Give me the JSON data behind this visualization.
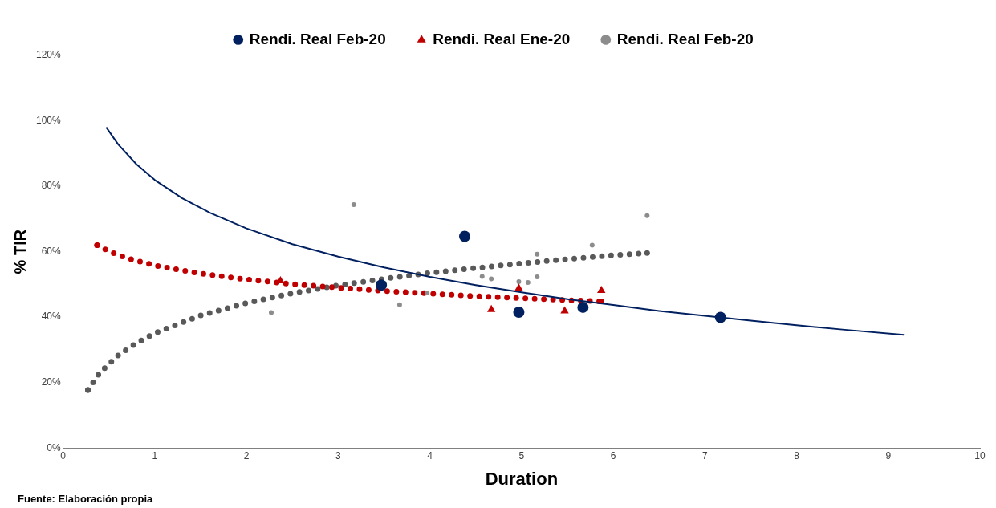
{
  "chart_data": {
    "type": "scatter",
    "xlabel": "Duration",
    "ylabel": "% TIR",
    "xlim": [
      0,
      10
    ],
    "xticks": [
      0,
      1,
      2,
      3,
      4,
      5,
      6,
      7,
      8,
      9,
      10
    ],
    "ylim": [
      0,
      120
    ],
    "yticks": [
      {
        "value": 0,
        "label": "0%"
      },
      {
        "value": 20,
        "label": "20%"
      },
      {
        "value": 40,
        "label": "40%"
      },
      {
        "value": 60,
        "label": "60%"
      },
      {
        "value": 80,
        "label": "80%"
      },
      {
        "value": 100,
        "label": "100%"
      },
      {
        "value": 120,
        "label": "120%"
      }
    ],
    "grid": false,
    "legend": "top",
    "annotations": [
      "Fuente: Elaboración propia"
    ],
    "series": [
      {
        "name": "Rendi. Real Feb-20",
        "marker": "circle",
        "color": "#002060",
        "x": [
          4.38,
          3.47,
          4.97,
          5.67,
          7.17
        ],
        "values": [
          64.7,
          49.8,
          41.5,
          43.0,
          39.9
        ]
      },
      {
        "name": "Rendi. Real Ene-20",
        "marker": "triangle",
        "color": "#c00000",
        "x": [
          2.37,
          4.67,
          4.97,
          5.47,
          5.87
        ],
        "values": [
          51.1,
          42.3,
          48.8,
          41.9,
          48.1
        ]
      },
      {
        "name": "Rendi. Real Feb-20",
        "marker": "circle",
        "color": "#8c8c8c",
        "x": [
          2.27,
          3.17,
          3.67,
          3.97,
          4.57,
          4.67,
          4.97,
          5.07,
          5.17,
          5.17,
          5.77,
          6.37
        ],
        "values": [
          41.4,
          74.4,
          43.8,
          47.4,
          52.4,
          51.7,
          50.8,
          50.6,
          52.3,
          59.2,
          62.0,
          71.0
        ]
      },
      {
        "type": "line",
        "marker": "none",
        "line_style": "solid",
        "color": "#002060",
        "x": [
          0.47,
          0.6,
          0.8,
          1,
          1.3,
          1.6,
          2,
          2.5,
          3,
          3.5,
          4,
          4.5,
          5,
          5.5,
          6,
          6.5,
          7,
          7.5,
          8,
          8.5,
          9.17
        ],
        "values": [
          98.0,
          92.8,
          86.7,
          81.9,
          76.3,
          71.9,
          67.1,
          62.3,
          58.5,
          55.2,
          52.3,
          49.8,
          47.6,
          45.5,
          43.7,
          41.9,
          40.4,
          38.9,
          37.5,
          36.2,
          34.6
        ]
      },
      {
        "type": "line",
        "marker": "none",
        "line_style": "dotted",
        "color": "#c00000",
        "x": [
          0.37,
          0.5,
          0.7,
          1,
          1.5,
          2,
          2.5,
          3,
          3.5,
          4,
          4.5,
          5,
          5.5,
          5.87
        ],
        "values": [
          62.0,
          60.1,
          58.0,
          55.8,
          53.3,
          51.5,
          50.1,
          49.0,
          48.0,
          47.2,
          46.4,
          45.8,
          45.2,
          44.8
        ]
      },
      {
        "type": "line",
        "marker": "none",
        "line_style": "dotted",
        "color": "#595959",
        "x": [
          0.27,
          0.4,
          0.6,
          0.8,
          1,
          1.5,
          2,
          2.5,
          3,
          3.5,
          4,
          4.5,
          5,
          5.5,
          6,
          6.37
        ],
        "values": [
          17.7,
          23.0,
          28.3,
          32.1,
          35.1,
          40.5,
          44.3,
          47.3,
          49.7,
          51.7,
          53.5,
          55.0,
          56.4,
          57.7,
          58.9,
          59.6
        ]
      }
    ]
  }
}
